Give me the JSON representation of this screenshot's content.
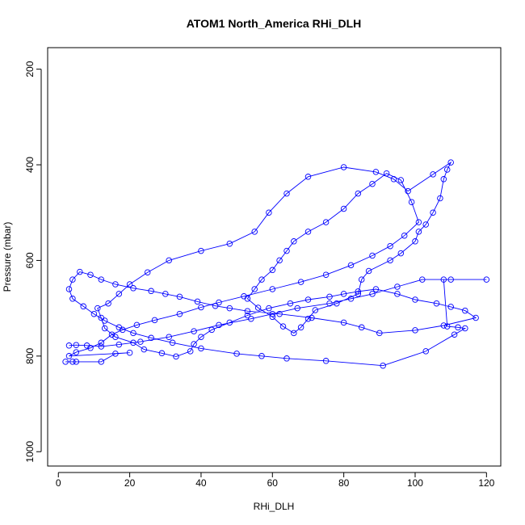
{
  "chart_data": {
    "type": "scatter",
    "title": "ATOM1 North_America RHi_DLH",
    "xlabel": "RHi_DLH",
    "ylabel": "Pressure (mbar)",
    "xlim": [
      -3,
      124
    ],
    "ylim": [
      1030,
      155
    ],
    "y_reversed": true,
    "grid": false,
    "style": {
      "color": "#0000ff",
      "marker": "open-circle",
      "connected": true
    },
    "xticks": [
      "0",
      "20",
      "40",
      "60",
      "80",
      "100",
      "120"
    ],
    "yticks": [
      "200",
      "400",
      "600",
      "800",
      "1000"
    ],
    "series": [
      {
        "x": [
          2,
          4,
          5,
          12,
          16,
          20,
          3,
          5,
          9,
          12,
          15,
          18,
          22,
          27,
          34,
          40,
          45,
          52,
          60,
          68,
          75,
          82,
          88,
          93,
          97,
          101,
          99,
          96,
          92,
          88,
          84,
          80,
          75,
          70,
          66,
          64,
          62,
          60,
          57,
          55,
          53,
          56,
          60,
          63,
          66,
          68,
          70,
          72,
          78,
          84,
          85,
          87,
          93,
          96,
          100,
          101,
          103,
          105,
          107,
          108,
          109,
          110,
          105,
          98,
          94,
          89,
          80,
          70,
          64,
          59,
          55,
          48,
          40,
          31,
          25,
          20,
          17,
          14,
          11,
          12,
          13,
          16,
          21,
          24,
          29,
          33,
          37,
          38,
          40,
          43,
          48,
          53,
          59,
          65,
          70,
          76,
          80,
          84,
          89,
          95,
          100,
          106,
          110,
          114,
          117,
          108,
          100,
          90,
          85,
          80,
          71,
          62,
          53,
          48,
          44,
          39,
          34,
          30,
          26,
          21,
          16,
          12,
          9,
          6,
          4,
          3,
          4,
          7,
          10,
          13,
          17,
          21,
          26,
          32,
          40,
          50,
          57,
          64,
          75,
          91,
          103,
          111,
          114,
          112,
          109,
          108,
          110,
          120,
          102,
          95,
          88,
          82,
          76,
          67,
          60,
          54,
          45,
          38,
          31,
          23,
          17,
          12,
          8,
          5,
          3
        ],
        "y": [
          812,
          812,
          812,
          812,
          795,
          793,
          800,
          792,
          783,
          772,
          755,
          745,
          735,
          725,
          712,
          698,
          688,
          675,
          660,
          645,
          630,
          610,
          590,
          570,
          548,
          520,
          478,
          432,
          418,
          440,
          460,
          492,
          520,
          540,
          560,
          580,
          600,
          620,
          640,
          660,
          680,
          699,
          718,
          738,
          752,
          740,
          722,
          704,
          690,
          670,
          640,
          622,
          600,
          585,
          560,
          540,
          525,
          500,
          470,
          430,
          410,
          395,
          420,
          455,
          430,
          415,
          405,
          425,
          460,
          500,
          540,
          565,
          580,
          600,
          625,
          650,
          670,
          690,
          700,
          720,
          742,
          760,
          772,
          786,
          794,
          801,
          790,
          775,
          760,
          745,
          730,
          715,
          700,
          690,
          682,
          676,
          670,
          665,
          660,
          670,
          682,
          690,
          697,
          705,
          720,
          736,
          746,
          752,
          740,
          730,
          720,
          712,
          706,
          700,
          695,
          686,
          676,
          670,
          664,
          658,
          650,
          640,
          630,
          624,
          640,
          660,
          680,
          696,
          712,
          726,
          740,
          752,
          762,
          772,
          784,
          795,
          800,
          805,
          810,
          820,
          790,
          755,
          742,
          740,
          738,
          640,
          640,
          640,
          640,
          655,
          670,
          680,
          690,
          700,
          712,
          722,
          735,
          748,
          760,
          770,
          776,
          780,
          778,
          777,
          778
        ]
      }
    ]
  }
}
